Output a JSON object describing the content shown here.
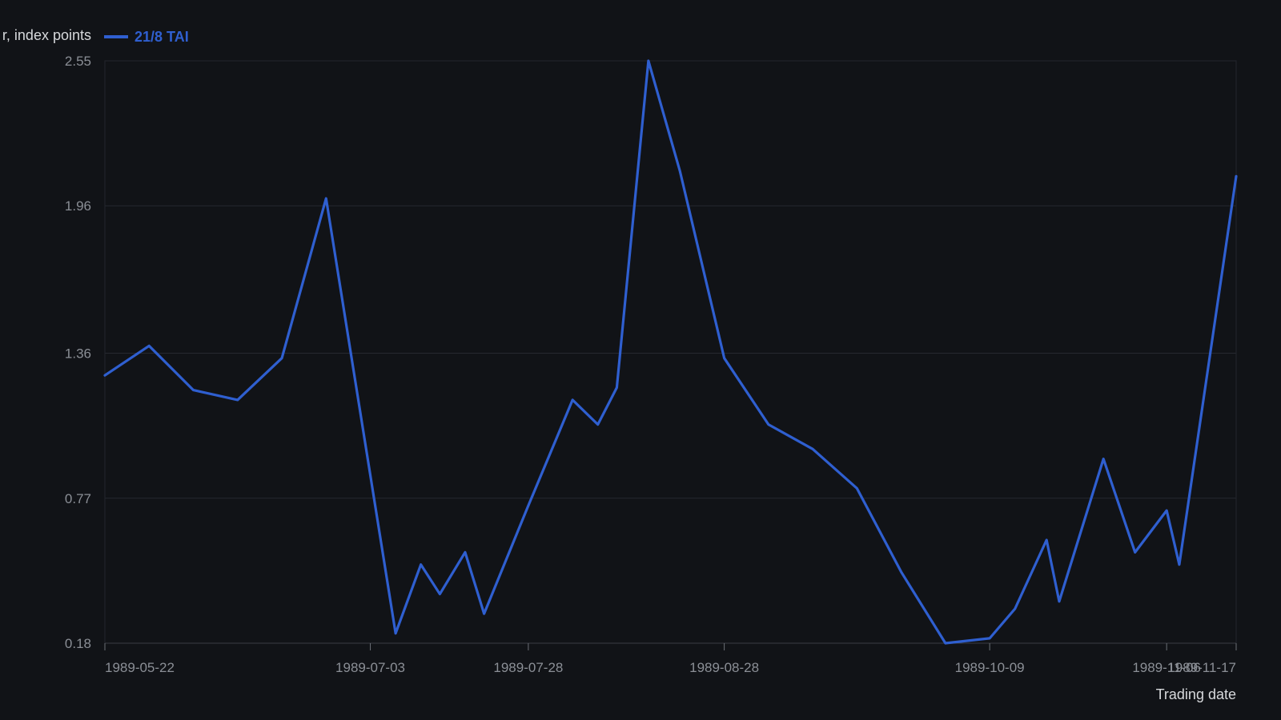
{
  "chart_data": {
    "type": "line",
    "ylabel": "r, index points",
    "xlabel": "Trading date",
    "y_ticks": [
      "0.18",
      "0.77",
      "1.36",
      "1.96",
      "2.55"
    ],
    "ylim": [
      0.18,
      2.55
    ],
    "x_ticks": [
      "1989-05-22",
      "1989-07-03",
      "1989-07-28",
      "1989-08-28",
      "1989-10-09",
      "1989-11-06",
      "1989-11-17"
    ],
    "xlim": [
      "1989-05-22",
      "1989-11-17"
    ],
    "legend_position": "top-left",
    "grid": true,
    "series": [
      {
        "name": "21/8 TAI",
        "color": "#2f5fd0",
        "points": [
          [
            "1989-05-22",
            1.27
          ],
          [
            "1989-05-29",
            1.39
          ],
          [
            "1989-06-05",
            1.21
          ],
          [
            "1989-06-12",
            1.17
          ],
          [
            "1989-06-19",
            1.34
          ],
          [
            "1989-06-26",
            1.99
          ],
          [
            "1989-07-07",
            0.22
          ],
          [
            "1989-07-11",
            0.5
          ],
          [
            "1989-07-14",
            0.38
          ],
          [
            "1989-07-18",
            0.55
          ],
          [
            "1989-07-21",
            0.3
          ],
          [
            "1989-07-28",
            0.74
          ],
          [
            "1989-08-04",
            1.17
          ],
          [
            "1989-08-08",
            1.07
          ],
          [
            "1989-08-11",
            1.22
          ],
          [
            "1989-08-16",
            2.55
          ],
          [
            "1989-08-21",
            2.1
          ],
          [
            "1989-08-28",
            1.34
          ],
          [
            "1989-09-04",
            1.07
          ],
          [
            "1989-09-11",
            0.97
          ],
          [
            "1989-09-18",
            0.81
          ],
          [
            "1989-09-25",
            0.47
          ],
          [
            "1989-10-02",
            0.18
          ],
          [
            "1989-10-09",
            0.2
          ],
          [
            "1989-10-13",
            0.32
          ],
          [
            "1989-10-18",
            0.6
          ],
          [
            "1989-10-20",
            0.35
          ],
          [
            "1989-10-27",
            0.93
          ],
          [
            "1989-11-01",
            0.55
          ],
          [
            "1989-11-06",
            0.72
          ],
          [
            "1989-11-08",
            0.5
          ],
          [
            "1989-11-17",
            2.08
          ]
        ]
      }
    ]
  }
}
